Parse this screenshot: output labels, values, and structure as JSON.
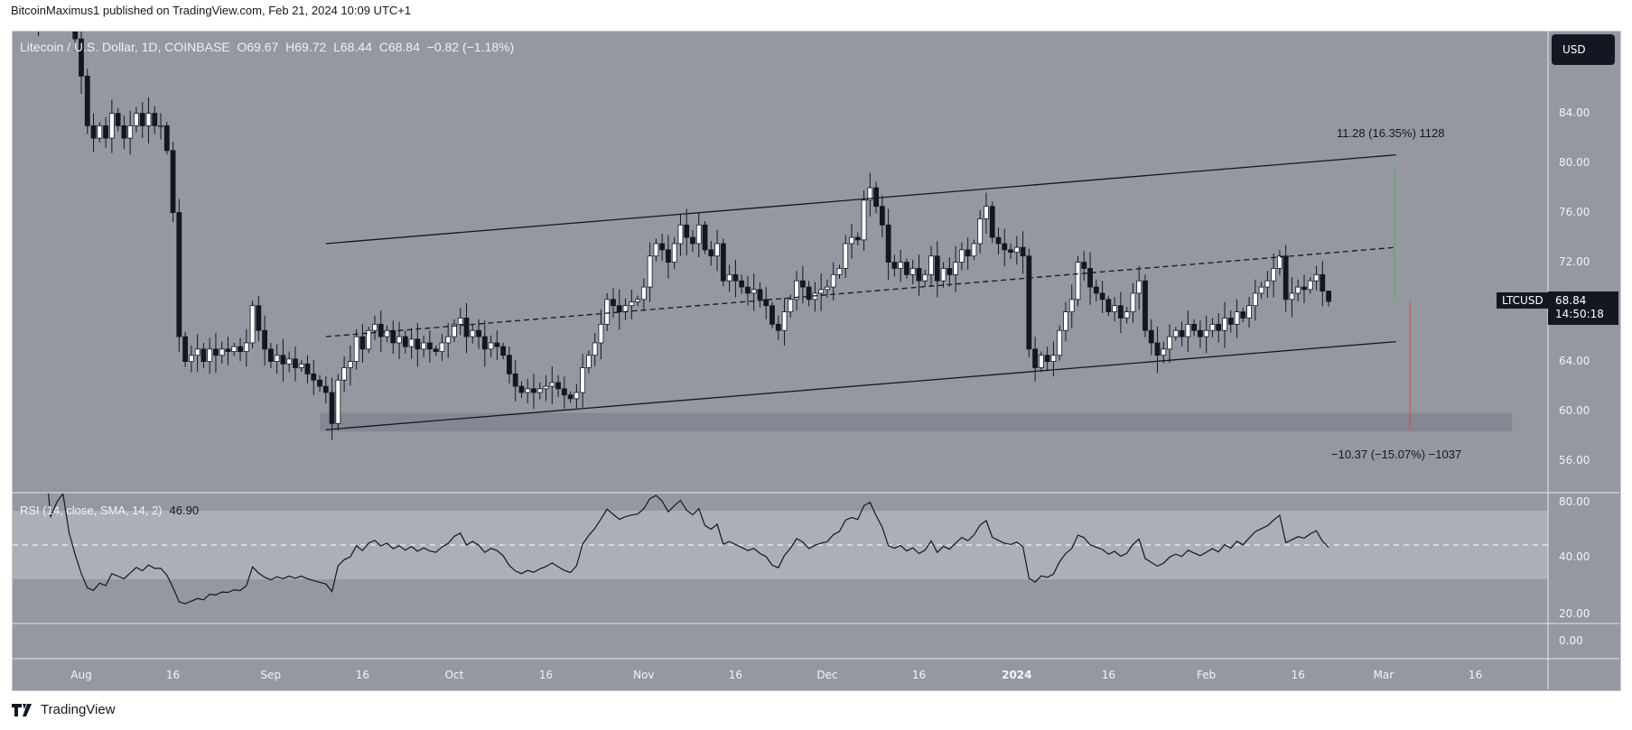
{
  "header": {
    "published": "BitcoinMaximus1 published on TradingView.com, Feb 21, 2024 10:09 UTC+1"
  },
  "legend": {
    "symbol": "Litecoin / U.S. Dollar, 1D, COINBASE",
    "o_label": "O",
    "o": "69.67",
    "h_label": "H",
    "h": "69.72",
    "l_label": "L",
    "l": "68.44",
    "c_label": "C",
    "c": "68.84",
    "change": "−0.82 (−1.18%)"
  },
  "currency_button": "USD",
  "price_tag": {
    "ticker": "LTCUSD",
    "price": "68.84",
    "countdown": "14:50:18"
  },
  "measurements": {
    "up": "11.28 (16.35%) 1128",
    "down": "−10.37 (−15.07%) −1037"
  },
  "rsi": {
    "label": "RSI (14, close, SMA, 14, 2)",
    "value": "46.90",
    "period": 14,
    "upper_band": 70,
    "lower_band": 30,
    "mid": 50
  },
  "price_axis": [
    "84.00",
    "80.00",
    "76.00",
    "72.00",
    "64.00",
    "60.00",
    "56.00"
  ],
  "rsi_axis": [
    "80.00",
    "40.00",
    "20.00"
  ],
  "third_axis": [
    "0.00"
  ],
  "time_axis": [
    "Aug",
    "16",
    "Sep",
    "16",
    "Oct",
    "16",
    "Nov",
    "16",
    "Dec",
    "16",
    "2024",
    "16",
    "Feb",
    "16",
    "Mar",
    "16"
  ],
  "branding": "TradingView",
  "colors": {
    "background": "#9598a1",
    "rsi_band": "#adafb7",
    "bull": "#ffffff",
    "bear": "#131722",
    "support_zone": "#7f828b",
    "measure_up": "#4caf50",
    "measure_down": "#f23645"
  },
  "chart_data": {
    "type": "candlestick",
    "start_date": "2023-07-24",
    "end_date": "2024-02-21",
    "close": [
      91,
      92,
      93,
      92,
      93,
      94,
      92,
      90,
      87,
      83,
      82,
      83,
      82,
      84,
      83,
      82,
      83,
      84,
      83,
      84,
      83,
      83,
      81,
      76,
      66,
      64,
      64.5,
      65,
      64,
      65,
      64.5,
      65,
      64.8,
      65.2,
      64.8,
      65.5,
      68.5,
      66.5,
      65,
      64,
      64.5,
      63.8,
      64.2,
      63.5,
      63.8,
      63,
      62.5,
      62,
      61.5,
      59,
      62.5,
      63.5,
      64,
      66,
      65,
      66.5,
      67,
      66,
      66.5,
      65.5,
      66,
      65.2,
      65.8,
      65,
      65.5,
      65,
      64.8,
      65.5,
      66,
      67,
      67.5,
      66,
      66.5,
      66,
      65,
      65.5,
      65.2,
      64.5,
      63,
      62,
      61.5,
      61.8,
      61.5,
      61.8,
      62,
      62.3,
      61.8,
      61.3,
      61,
      61.5,
      63.5,
      64.5,
      65.5,
      67,
      69,
      68.5,
      68,
      68.5,
      68.8,
      69,
      70,
      72.5,
      73.5,
      73,
      72,
      73.5,
      75,
      74,
      73.5,
      75,
      73,
      72.5,
      73.5,
      70.5,
      71,
      70.5,
      70,
      69.5,
      69.8,
      69,
      68.5,
      67,
      66.5,
      68,
      69,
      70.5,
      70,
      69,
      69.5,
      69.8,
      70,
      71,
      71.5,
      73.5,
      74,
      73.8,
      77,
      78,
      76.5,
      75,
      72,
      71.5,
      72,
      71,
      71.5,
      70.5,
      71,
      72.5,
      70.5,
      71.5,
      71,
      72,
      73,
      72.5,
      73.5,
      75.5,
      76.5,
      74,
      73.5,
      73,
      72.8,
      73.2,
      72.5,
      65,
      63.5,
      64.5,
      64,
      64.5,
      66.5,
      68,
      69,
      72,
      71.5,
      70,
      69.5,
      69,
      68,
      68.5,
      67.5,
      68,
      69.5,
      70.5,
      66.5,
      65.5,
      64.5,
      65,
      66,
      66.5,
      66,
      67,
      66.5,
      66,
      66.5,
      67,
      66.5,
      67.5,
      67,
      68,
      67.5,
      68.5,
      69.5,
      70,
      70.5,
      71.5,
      72.5,
      69,
      69.5,
      70,
      69.8,
      70.5,
      71,
      69.67,
      68.84
    ],
    "last_candle": {
      "o": 69.67,
      "h": 69.72,
      "l": 68.44,
      "c": 68.84
    },
    "drawings": {
      "channel_upper": [
        [
          "2023-09-10",
          73.5
        ],
        [
          "2024-03-03",
          80.65
        ]
      ],
      "channel_mid": [
        [
          "2023-09-10",
          66.0
        ],
        [
          "2024-03-03",
          73.2
        ]
      ],
      "channel_lower": [
        [
          "2023-09-10",
          58.5
        ],
        [
          "2024-03-03",
          65.6
        ]
      ],
      "support_zone": {
        "from": "2023-09-09",
        "to": "2024-03-22",
        "low": 58.35,
        "high": 59.85
      }
    },
    "ylim": [
      54,
      90
    ],
    "y_ticks": [
      56,
      60,
      64,
      72,
      76,
      80,
      84
    ]
  }
}
